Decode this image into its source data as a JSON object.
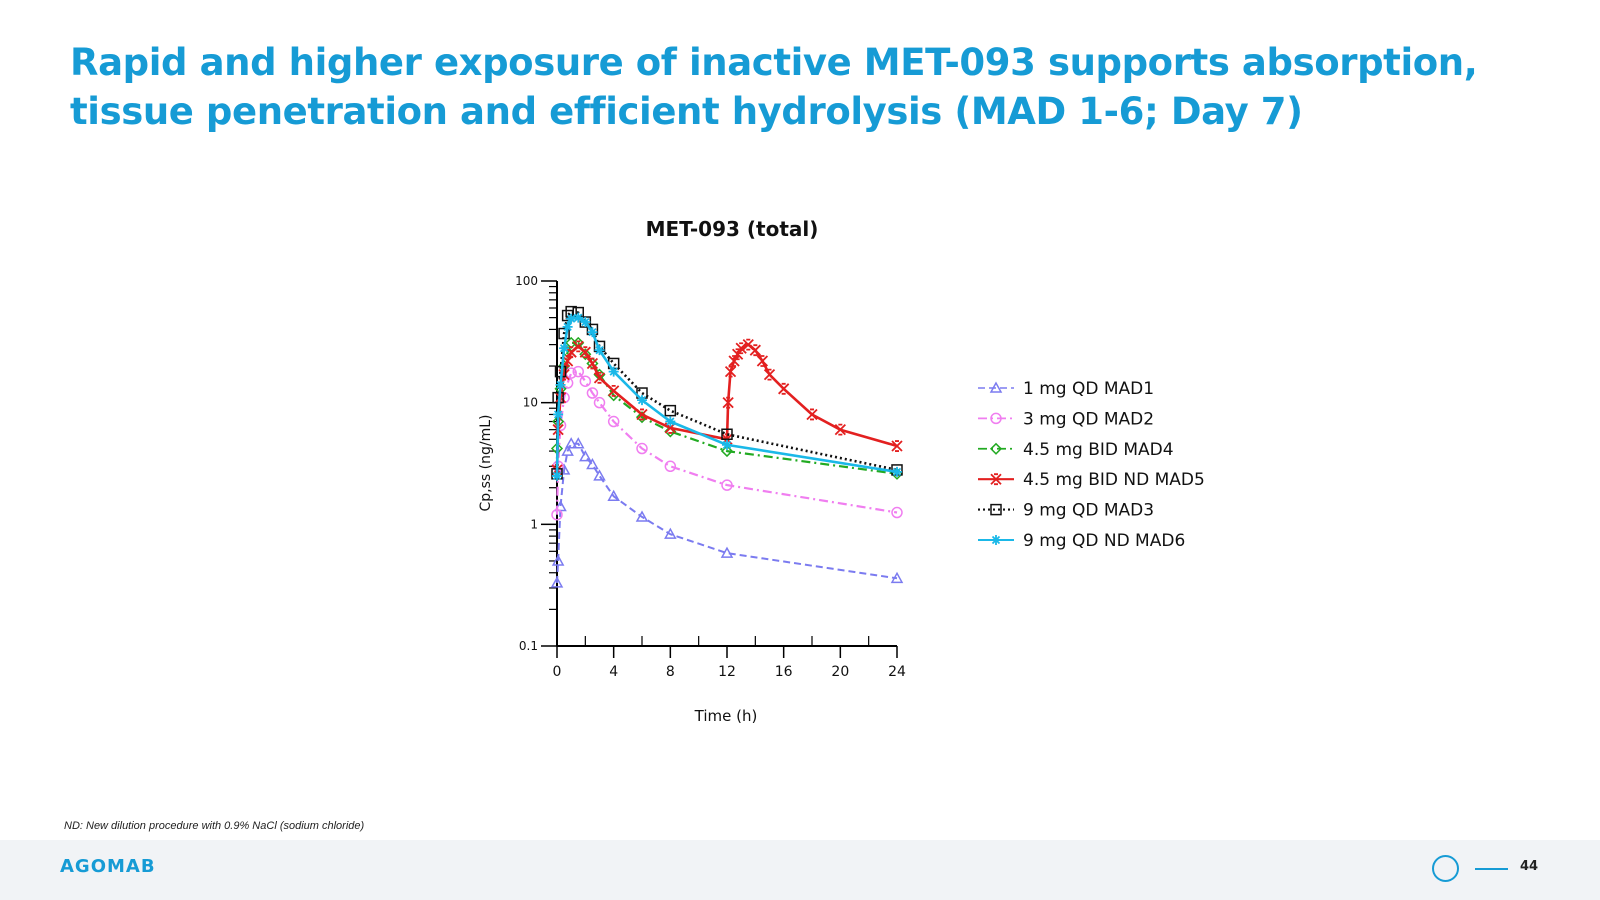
{
  "slide": {
    "title_line1": "Rapid and higher exposure of inactive MET-093 supports absorption,",
    "title_line2": "tissue penetration and efficient hydrolysis (MAD 1-6; Day 7)",
    "footnote": "ND: New dilution procedure with 0.9% NaCl (sodium chloride)",
    "page_number": "44",
    "logo_text": "AGOMAB",
    "accent_color": "#169bd5"
  },
  "chart_data": {
    "type": "line",
    "title": "MET-093 (total)",
    "xlabel": "Time (h)",
    "ylabel": "Cp,ss (ng/mL)",
    "x_scale": "linear",
    "y_scale": "log",
    "xlim": [
      0,
      24
    ],
    "ylim": [
      0.1,
      100
    ],
    "x_ticks": [
      0,
      4,
      8,
      12,
      16,
      20,
      24
    ],
    "y_ticks": [
      0.1,
      1,
      10,
      100
    ],
    "y_tick_labels": [
      "0.1",
      "1",
      "10",
      "100"
    ],
    "grid": false,
    "legend_position": "right",
    "series": [
      {
        "name": "1 mg QD MAD1",
        "color": "#7b7bf0",
        "line_style": "dashed",
        "marker": "triangle",
        "x": [
          0,
          0.08,
          0.25,
          0.5,
          0.75,
          1,
          1.5,
          2,
          2.5,
          3,
          4,
          6,
          8,
          12,
          24
        ],
        "y": [
          0.33,
          0.5,
          1.4,
          2.8,
          4.0,
          4.6,
          4.6,
          3.6,
          3.1,
          2.5,
          1.7,
          1.15,
          0.83,
          0.58,
          0.36
        ]
      },
      {
        "name": "3 mg QD MAD2",
        "color": "#f07ef0",
        "line_style": "dashdot",
        "marker": "circle",
        "x": [
          0,
          0.08,
          0.25,
          0.5,
          0.75,
          1,
          1.5,
          2,
          2.5,
          3,
          4,
          6,
          8,
          12,
          24
        ],
        "y": [
          1.2,
          3.0,
          6.5,
          11.0,
          14.5,
          17.5,
          18.0,
          15.0,
          12.0,
          10.0,
          7.0,
          4.2,
          3.0,
          2.1,
          1.25
        ]
      },
      {
        "name": "4.5 mg BID MAD4",
        "color": "#22aa22",
        "line_style": "dashdot",
        "marker": "diamond",
        "x": [
          0,
          0.08,
          0.25,
          0.5,
          0.75,
          1,
          1.5,
          2,
          2.5,
          3,
          4,
          6,
          8,
          12,
          24
        ],
        "y": [
          4.2,
          7.0,
          13.0,
          20.0,
          26.0,
          31.0,
          31.0,
          25.0,
          21.0,
          17.0,
          11.5,
          7.6,
          5.8,
          4.0,
          2.6
        ]
      },
      {
        "name": "4.5 mg BID ND MAD5",
        "color": "#e32020",
        "line_style": "solid",
        "marker": "x",
        "x": [
          0,
          0.08,
          0.25,
          0.5,
          0.75,
          1,
          1.5,
          2,
          2.5,
          3,
          4,
          6,
          8,
          12,
          12.08,
          12.25,
          12.5,
          12.75,
          13,
          13.5,
          14,
          14.5,
          15,
          16,
          18,
          20,
          24
        ],
        "y": [
          2.8,
          6.0,
          11.0,
          17.0,
          22.0,
          26.0,
          29.0,
          26.0,
          21.0,
          16.0,
          12.5,
          8.0,
          6.2,
          5.0,
          10.0,
          18.0,
          22.0,
          25.0,
          28.0,
          30.0,
          27.0,
          22.0,
          17.0,
          13.0,
          8.0,
          6.0,
          4.4
        ]
      },
      {
        "name": "9 mg QD MAD3",
        "color": "#111111",
        "line_style": "dotted",
        "marker": "square",
        "x": [
          0,
          0.08,
          0.25,
          0.5,
          0.75,
          1,
          1.5,
          2,
          2.5,
          3,
          4,
          6,
          8,
          12,
          24
        ],
        "y": [
          2.6,
          11.0,
          18.0,
          37.0,
          52.0,
          56.0,
          55.0,
          46.0,
          40.0,
          29.0,
          21.0,
          12.0,
          8.6,
          5.5,
          2.8
        ]
      },
      {
        "name": "9 mg QD ND MAD6",
        "color": "#1ab8e8",
        "line_style": "solid",
        "marker": "star",
        "x": [
          0,
          0.08,
          0.25,
          0.5,
          0.75,
          1,
          1.5,
          2,
          2.5,
          3,
          4,
          6,
          8,
          12,
          24
        ],
        "y": [
          2.5,
          8.0,
          14.0,
          28.0,
          42.0,
          49.0,
          50.0,
          46.0,
          38.0,
          27.0,
          18.0,
          10.5,
          7.0,
          4.5,
          2.7
        ]
      }
    ]
  }
}
